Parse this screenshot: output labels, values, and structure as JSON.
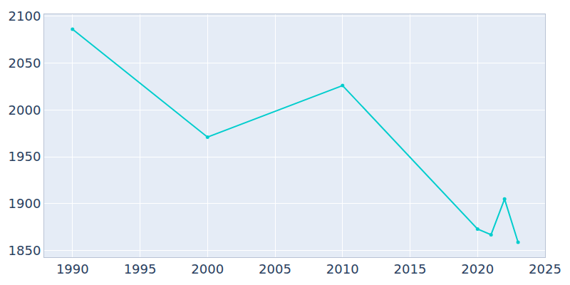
{
  "chart_data": {
    "type": "line",
    "x": [
      1990,
      2000,
      2010,
      2020,
      2021,
      2022,
      2023
    ],
    "values": [
      2086,
      1971,
      2026,
      1873,
      1867,
      1905,
      1859
    ],
    "color": "#00cdcd",
    "marker": "circle",
    "xlim": [
      1987.9,
      2025
    ],
    "xticks": [
      1990,
      1995,
      2000,
      2005,
      2010,
      2015,
      2020,
      2025
    ],
    "ylim": [
      1843,
      2102
    ],
    "yticks": [
      1850,
      1900,
      1950,
      2000,
      2050,
      2100
    ],
    "grid": true
  }
}
